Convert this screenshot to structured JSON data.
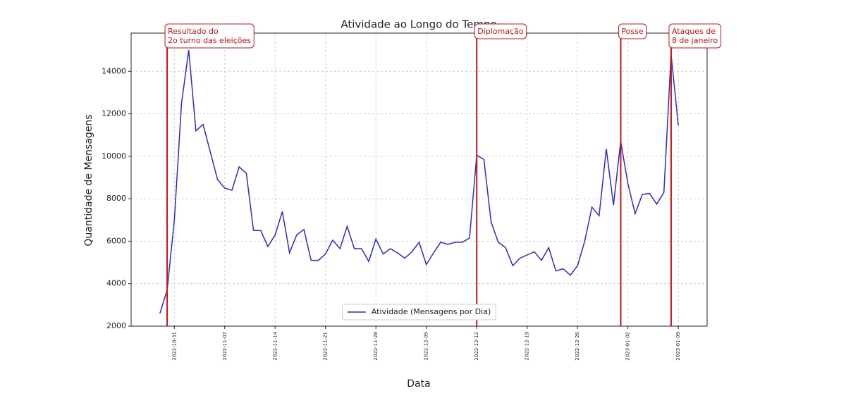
{
  "chart_data": {
    "type": "line",
    "title": "Atividade ao Longo do Tempo",
    "xlabel": "Data",
    "ylabel": "Quantidade de Mensagens",
    "x": [
      "2022-10-29",
      "2022-10-30",
      "2022-10-31",
      "2022-11-01",
      "2022-11-02",
      "2022-11-03",
      "2022-11-04",
      "2022-11-05",
      "2022-11-06",
      "2022-11-07",
      "2022-11-08",
      "2022-11-09",
      "2022-11-10",
      "2022-11-11",
      "2022-11-12",
      "2022-11-13",
      "2022-11-14",
      "2022-11-15",
      "2022-11-16",
      "2022-11-17",
      "2022-11-18",
      "2022-11-19",
      "2022-11-20",
      "2022-11-21",
      "2022-11-22",
      "2022-11-23",
      "2022-11-24",
      "2022-11-25",
      "2022-11-26",
      "2022-11-27",
      "2022-11-28",
      "2022-11-29",
      "2022-11-30",
      "2022-12-01",
      "2022-12-02",
      "2022-12-03",
      "2022-12-04",
      "2022-12-05",
      "2022-12-06",
      "2022-12-07",
      "2022-12-08",
      "2022-12-09",
      "2022-12-10",
      "2022-12-11",
      "2022-12-12",
      "2022-12-13",
      "2022-12-14",
      "2022-12-15",
      "2022-12-16",
      "2022-12-17",
      "2022-12-18",
      "2022-12-19",
      "2022-12-20",
      "2022-12-21",
      "2022-12-22",
      "2022-12-23",
      "2022-12-24",
      "2022-12-25",
      "2022-12-26",
      "2022-12-27",
      "2022-12-28",
      "2022-12-29",
      "2022-12-30",
      "2022-12-31",
      "2023-01-01",
      "2023-01-02",
      "2023-01-03",
      "2023-01-04",
      "2023-01-05",
      "2023-01-06",
      "2023-01-07",
      "2023-01-08",
      "2023-01-09"
    ],
    "series": [
      {
        "name": "Atividade (Mensagens por Dia)",
        "color": "#2a2ad0",
        "values": [
          2600,
          3700,
          7000,
          12500,
          15000,
          11200,
          11500,
          10200,
          8900,
          8500,
          8400,
          9500,
          9200,
          6500,
          6500,
          5750,
          6300,
          7400,
          5450,
          6300,
          6550,
          5100,
          5100,
          5400,
          6050,
          5650,
          6700,
          5650,
          5650,
          5050,
          6100,
          5400,
          5650,
          5450,
          5200,
          5500,
          5950,
          4900,
          5450,
          5950,
          5850,
          5950,
          5950,
          6150,
          10050,
          9850,
          6900,
          5950,
          5700,
          4850,
          5200,
          5350,
          5500,
          5100,
          5700,
          4600,
          4700,
          4400,
          4850,
          6000,
          7600,
          7200,
          10350,
          7700,
          10700,
          8700,
          7300,
          8200,
          8250,
          7750,
          8300,
          14800,
          11450
        ]
      }
    ],
    "xlim": [
      "2022-10-25",
      "2023-01-13"
    ],
    "xticks": [
      "2022-10-31",
      "2022-11-07",
      "2022-11-14",
      "2022-11-21",
      "2022-11-28",
      "2022-12-05",
      "2022-12-12",
      "2022-12-19",
      "2022-12-26",
      "2023-01-02",
      "2023-01-09"
    ],
    "ylim": [
      2000,
      15800
    ],
    "yticks": [
      2000,
      4000,
      6000,
      8000,
      10000,
      12000,
      14000
    ],
    "grid": true,
    "legend": "lower center",
    "annotations": [
      {
        "x": "2022-10-30",
        "label": [
          "Resultado do",
          "2o turno das eleições"
        ]
      },
      {
        "x": "2022-12-12",
        "label": [
          "Diplomação"
        ]
      },
      {
        "x": "2023-01-01",
        "label": [
          "Posse"
        ]
      },
      {
        "x": "2023-01-08",
        "label": [
          "Ataques de",
          "8 de janeiro"
        ]
      }
    ],
    "annotation_color": "#cc1111"
  }
}
